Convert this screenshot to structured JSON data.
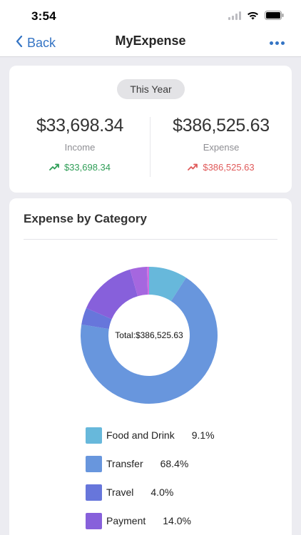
{
  "status": {
    "time": "3:54"
  },
  "nav": {
    "back_label": "Back",
    "title": "MyExpense"
  },
  "summary": {
    "period": "This Year",
    "income": {
      "amount": "$33,698.34",
      "label": "Income",
      "trend": "$33,698.34"
    },
    "expense": {
      "amount": "$386,525.63",
      "label": "Expense",
      "trend": "$386,525.63"
    }
  },
  "colors": {
    "accent": "#3474c4",
    "income": "#2f9e57",
    "expense": "#e05a5a"
  },
  "icons": {
    "trend_up": "trending-up-icon",
    "trend_down": "trending-down-icon",
    "back": "chevron-left-icon",
    "more": "more-horizontal-icon"
  },
  "chart_card": {
    "title": "Expense by Category"
  },
  "chart_data": {
    "type": "pie",
    "center_text": "Total:$386,525.63",
    "series": [
      {
        "name": "Food and Drink",
        "value": 9.1,
        "label": "9.1%",
        "color": "#67b8db"
      },
      {
        "name": "Transfer",
        "value": 68.4,
        "label": "68.4%",
        "color": "#6896dd"
      },
      {
        "name": "Travel",
        "value": 4.0,
        "label": "4.0%",
        "color": "#6776db"
      },
      {
        "name": "Payment",
        "value": 14.0,
        "label": "14.0%",
        "color": "#8760db"
      },
      {
        "name": "",
        "value": 4.0,
        "color": "#a567df"
      },
      {
        "name": "",
        "value": 0.5,
        "color": "#d06ee0"
      }
    ]
  }
}
